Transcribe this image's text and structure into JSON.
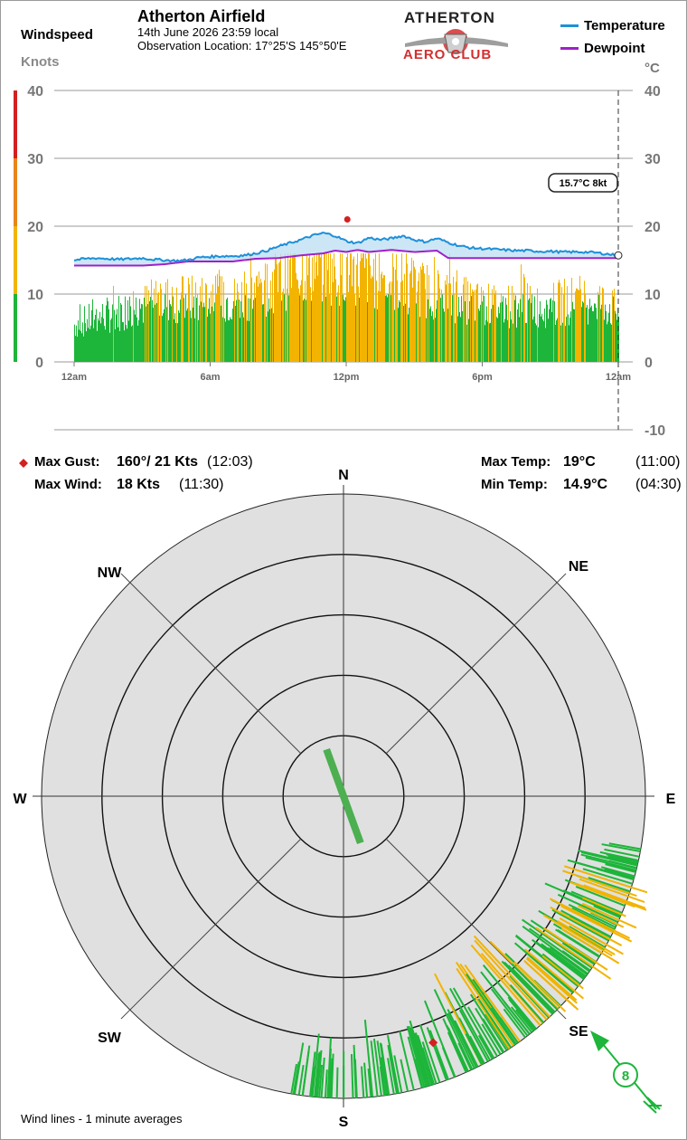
{
  "header": {
    "title": "Atherton Airfield",
    "datetime": "14th June 2026  23:59 local",
    "location": "Observation Location: 17°25'S 145°50'E",
    "logo_top": "ATHERTON",
    "logo_bottom": "AERO CLUB"
  },
  "windspeed_axis": {
    "title": "Windspeed",
    "unit": "Knots"
  },
  "temperature_axis": {
    "unit": "°C"
  },
  "legend": [
    {
      "label": "Temperature",
      "color": "#1e90d8"
    },
    {
      "label": "Dewpoint",
      "color": "#a020c8"
    }
  ],
  "current_badge": "15.7°C  8kt",
  "stats": {
    "max_gust_label": "Max Gust:",
    "max_gust_value": "160°/ 21 Kts",
    "max_gust_time": "(12:03)",
    "max_wind_label": "Max Wind:",
    "max_wind_value": "18 Kts",
    "max_wind_time": "(11:30)",
    "max_temp_label": "Max Temp:",
    "max_temp_value": "19°C",
    "max_temp_time": "(11:00)",
    "min_temp_label": "Min Temp:",
    "min_temp_value": "14.9°C",
    "min_temp_time": "(04:30)"
  },
  "footer_note": "Wind lines - 1 minute averages",
  "compass": {
    "N": "N",
    "NE": "NE",
    "E": "E",
    "SE": "SE",
    "S": "S",
    "SW": "SW",
    "W": "W",
    "NW": "NW"
  },
  "current_wind": {
    "direction_deg": 135,
    "speed_kt": "8"
  },
  "colors": {
    "calm": "#1db53a",
    "moderate": "#f2b400",
    "strong": "#e8851c",
    "severe": "#d42020",
    "gust_marker": "#d42020",
    "rose_background": "#e0e0e0"
  },
  "chart_data": [
    {
      "type": "line",
      "title": "Atherton Airfield",
      "x_ticks": [
        "12am",
        "6am",
        "12pm",
        "6pm",
        "12am"
      ],
      "x_hours": [
        0,
        6,
        12,
        18,
        24
      ],
      "left_axis": {
        "label": "Windspeed",
        "unit": "Knots",
        "ylim": [
          0,
          40
        ],
        "ticks": [
          0,
          10,
          20,
          30,
          40
        ],
        "color_bands": [
          [
            0,
            10,
            "calm"
          ],
          [
            10,
            20,
            "moderate"
          ],
          [
            20,
            30,
            "strong"
          ],
          [
            30,
            40,
            "severe"
          ]
        ]
      },
      "right_axis": {
        "unit": "°C",
        "ylim": [
          -10,
          40
        ],
        "ticks": [
          -10,
          0,
          10,
          20,
          30,
          40
        ]
      },
      "series": [
        {
          "name": "Temperature",
          "x": [
            0,
            0.5,
            1,
            1.5,
            2,
            2.5,
            3,
            3.5,
            4,
            4.5,
            5,
            5.5,
            6,
            6.5,
            7,
            7.5,
            8,
            8.5,
            9,
            9.5,
            10,
            10.5,
            11,
            11.5,
            12,
            12.5,
            13,
            13.5,
            14,
            14.5,
            15,
            15.5,
            16,
            16.5,
            17,
            17.5,
            18,
            18.5,
            19,
            19.5,
            20,
            20.5,
            21,
            21.5,
            22,
            22.5,
            23,
            23.5,
            24
          ],
          "y": [
            15.0,
            15.2,
            15.3,
            15.2,
            15.1,
            15.2,
            15.3,
            15.1,
            15.0,
            14.9,
            15.0,
            15.4,
            15.5,
            15.6,
            15.6,
            15.7,
            16.0,
            16.4,
            17.0,
            17.5,
            18.0,
            18.6,
            19.0,
            18.6,
            17.8,
            17.5,
            18.3,
            18.0,
            18.2,
            18.6,
            18.0,
            17.7,
            18.2,
            17.6,
            17.1,
            16.8,
            16.7,
            16.6,
            16.5,
            16.4,
            16.4,
            16.3,
            16.3,
            16.2,
            16.2,
            16.2,
            16.1,
            15.9,
            15.7
          ]
        },
        {
          "name": "Dewpoint",
          "x": [
            0,
            1,
            2,
            3,
            4,
            5,
            6,
            7,
            7.5,
            8,
            9,
            10,
            11,
            11.5,
            12,
            12.5,
            13,
            14,
            15,
            16,
            16.5,
            17,
            18,
            19,
            20,
            21,
            22,
            23,
            23.5,
            24
          ],
          "y": [
            14.2,
            14.2,
            14.2,
            14.2,
            14.4,
            14.8,
            14.8,
            14.8,
            15.0,
            15.2,
            15.3,
            15.7,
            16.0,
            16.4,
            16.2,
            16.5,
            16.2,
            16.5,
            16.2,
            16.4,
            15.3,
            15.3,
            15.3,
            15.3,
            15.3,
            15.3,
            15.3,
            15.3,
            15.3,
            15.3
          ]
        },
        {
          "name": "Windspeed",
          "x_hours": [
            0,
            1,
            2,
            3,
            4,
            5,
            6,
            7,
            8,
            9,
            10,
            11,
            12,
            13,
            14,
            15,
            16,
            17,
            18,
            19,
            20,
            21,
            22,
            23,
            24
          ],
          "y_kt_average": [
            6,
            7,
            8,
            9,
            10,
            10,
            10,
            10,
            11,
            13,
            15,
            15,
            15,
            14,
            13,
            12,
            11,
            10,
            9,
            9,
            9,
            9,
            10,
            10,
            8
          ]
        }
      ],
      "annotations": [
        {
          "type": "max_gust_marker",
          "x_hours": 12.05,
          "y_kt": 21
        },
        {
          "type": "current_value_badge",
          "text": "15.7°C  8kt",
          "x_hours": 24
        }
      ]
    },
    {
      "type": "scatter",
      "title": "",
      "note": "Wind lines - 1 minute averages",
      "rings_kt": [
        5,
        10,
        15,
        20,
        25
      ],
      "direction_range_deg": [
        100,
        190
      ],
      "current": {
        "direction_deg": 135,
        "speed_kt": 8
      },
      "max_gust": {
        "direction_deg": 160,
        "speed_kt": 21
      },
      "average_vector": {
        "direction_deg": 160,
        "speed_kt": 4
      }
    }
  ]
}
